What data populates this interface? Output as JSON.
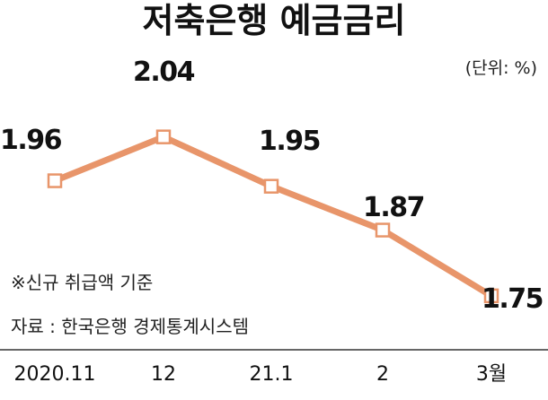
{
  "colors": {
    "line": "#E8956A",
    "marker_fill": "#ffffff",
    "text": "#111111",
    "axis": "#333333"
  },
  "chart_data": {
    "type": "line",
    "title": "저축은행 예금금리",
    "unit": "(단위: %)",
    "categories": [
      "2020.11",
      "12",
      "21.1",
      "2",
      "3월"
    ],
    "values": [
      1.96,
      2.04,
      1.95,
      1.87,
      1.75
    ],
    "data_labels": [
      "1.96",
      "2.04",
      "1.95",
      "1.87",
      "1.75"
    ],
    "ylim": [
      1.65,
      2.1
    ],
    "grid": false,
    "notes": [
      "※신규 취급액 기준",
      "자료 : 한국은행 경제통계시스템"
    ]
  }
}
